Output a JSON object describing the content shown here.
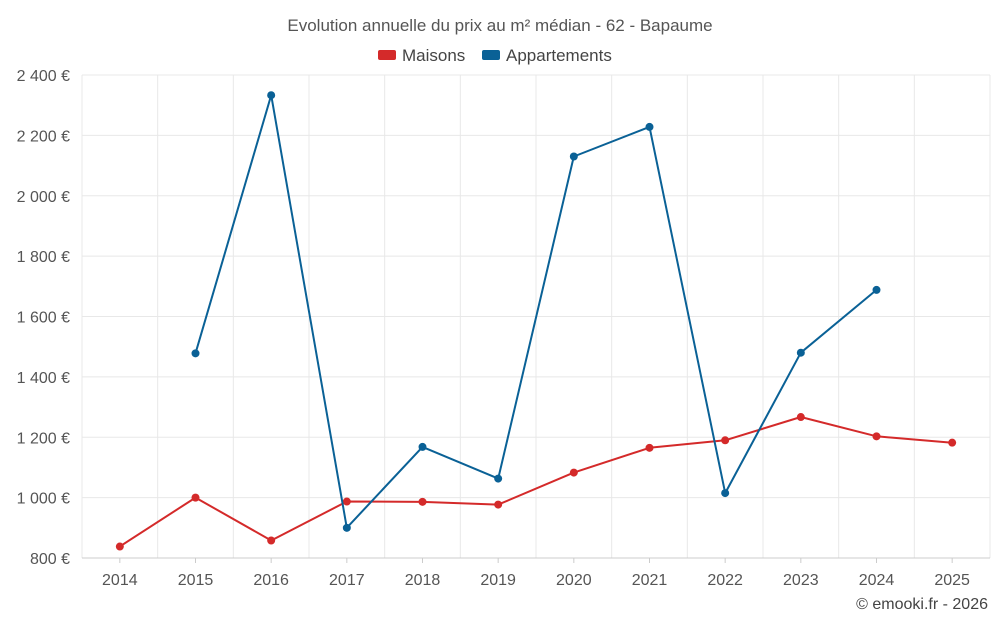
{
  "chart_data": {
    "type": "line",
    "title": "Evolution annuelle du prix au m² médian - 62 - Bapaume",
    "x": [
      "2014",
      "2015",
      "2016",
      "2017",
      "2018",
      "2019",
      "2020",
      "2021",
      "2022",
      "2023",
      "2024",
      "2025"
    ],
    "ylim": [
      800,
      2400
    ],
    "yticks": [
      800,
      1000,
      1200,
      1400,
      1600,
      1800,
      2000,
      2200,
      2400
    ],
    "ytick_labels": [
      "800 €",
      "1 000 €",
      "1 200 €",
      "1 400 €",
      "1 600 €",
      "1 800 €",
      "2 000 €",
      "2 200 €",
      "2 400 €"
    ],
    "grid": true,
    "legend_position": "top-center",
    "series": [
      {
        "name": "Maisons",
        "color": "#d42a2a",
        "values": [
          838,
          1000,
          858,
          987,
          986,
          977,
          1083,
          1165,
          1190,
          1267,
          1203,
          1182
        ]
      },
      {
        "name": "Appartements",
        "color": "#0a6196",
        "values": [
          null,
          1478,
          2333,
          900,
          1168,
          1063,
          2130,
          2228,
          1015,
          1480,
          1688,
          null
        ]
      }
    ]
  },
  "credit": "© emooki.fr - 2026"
}
